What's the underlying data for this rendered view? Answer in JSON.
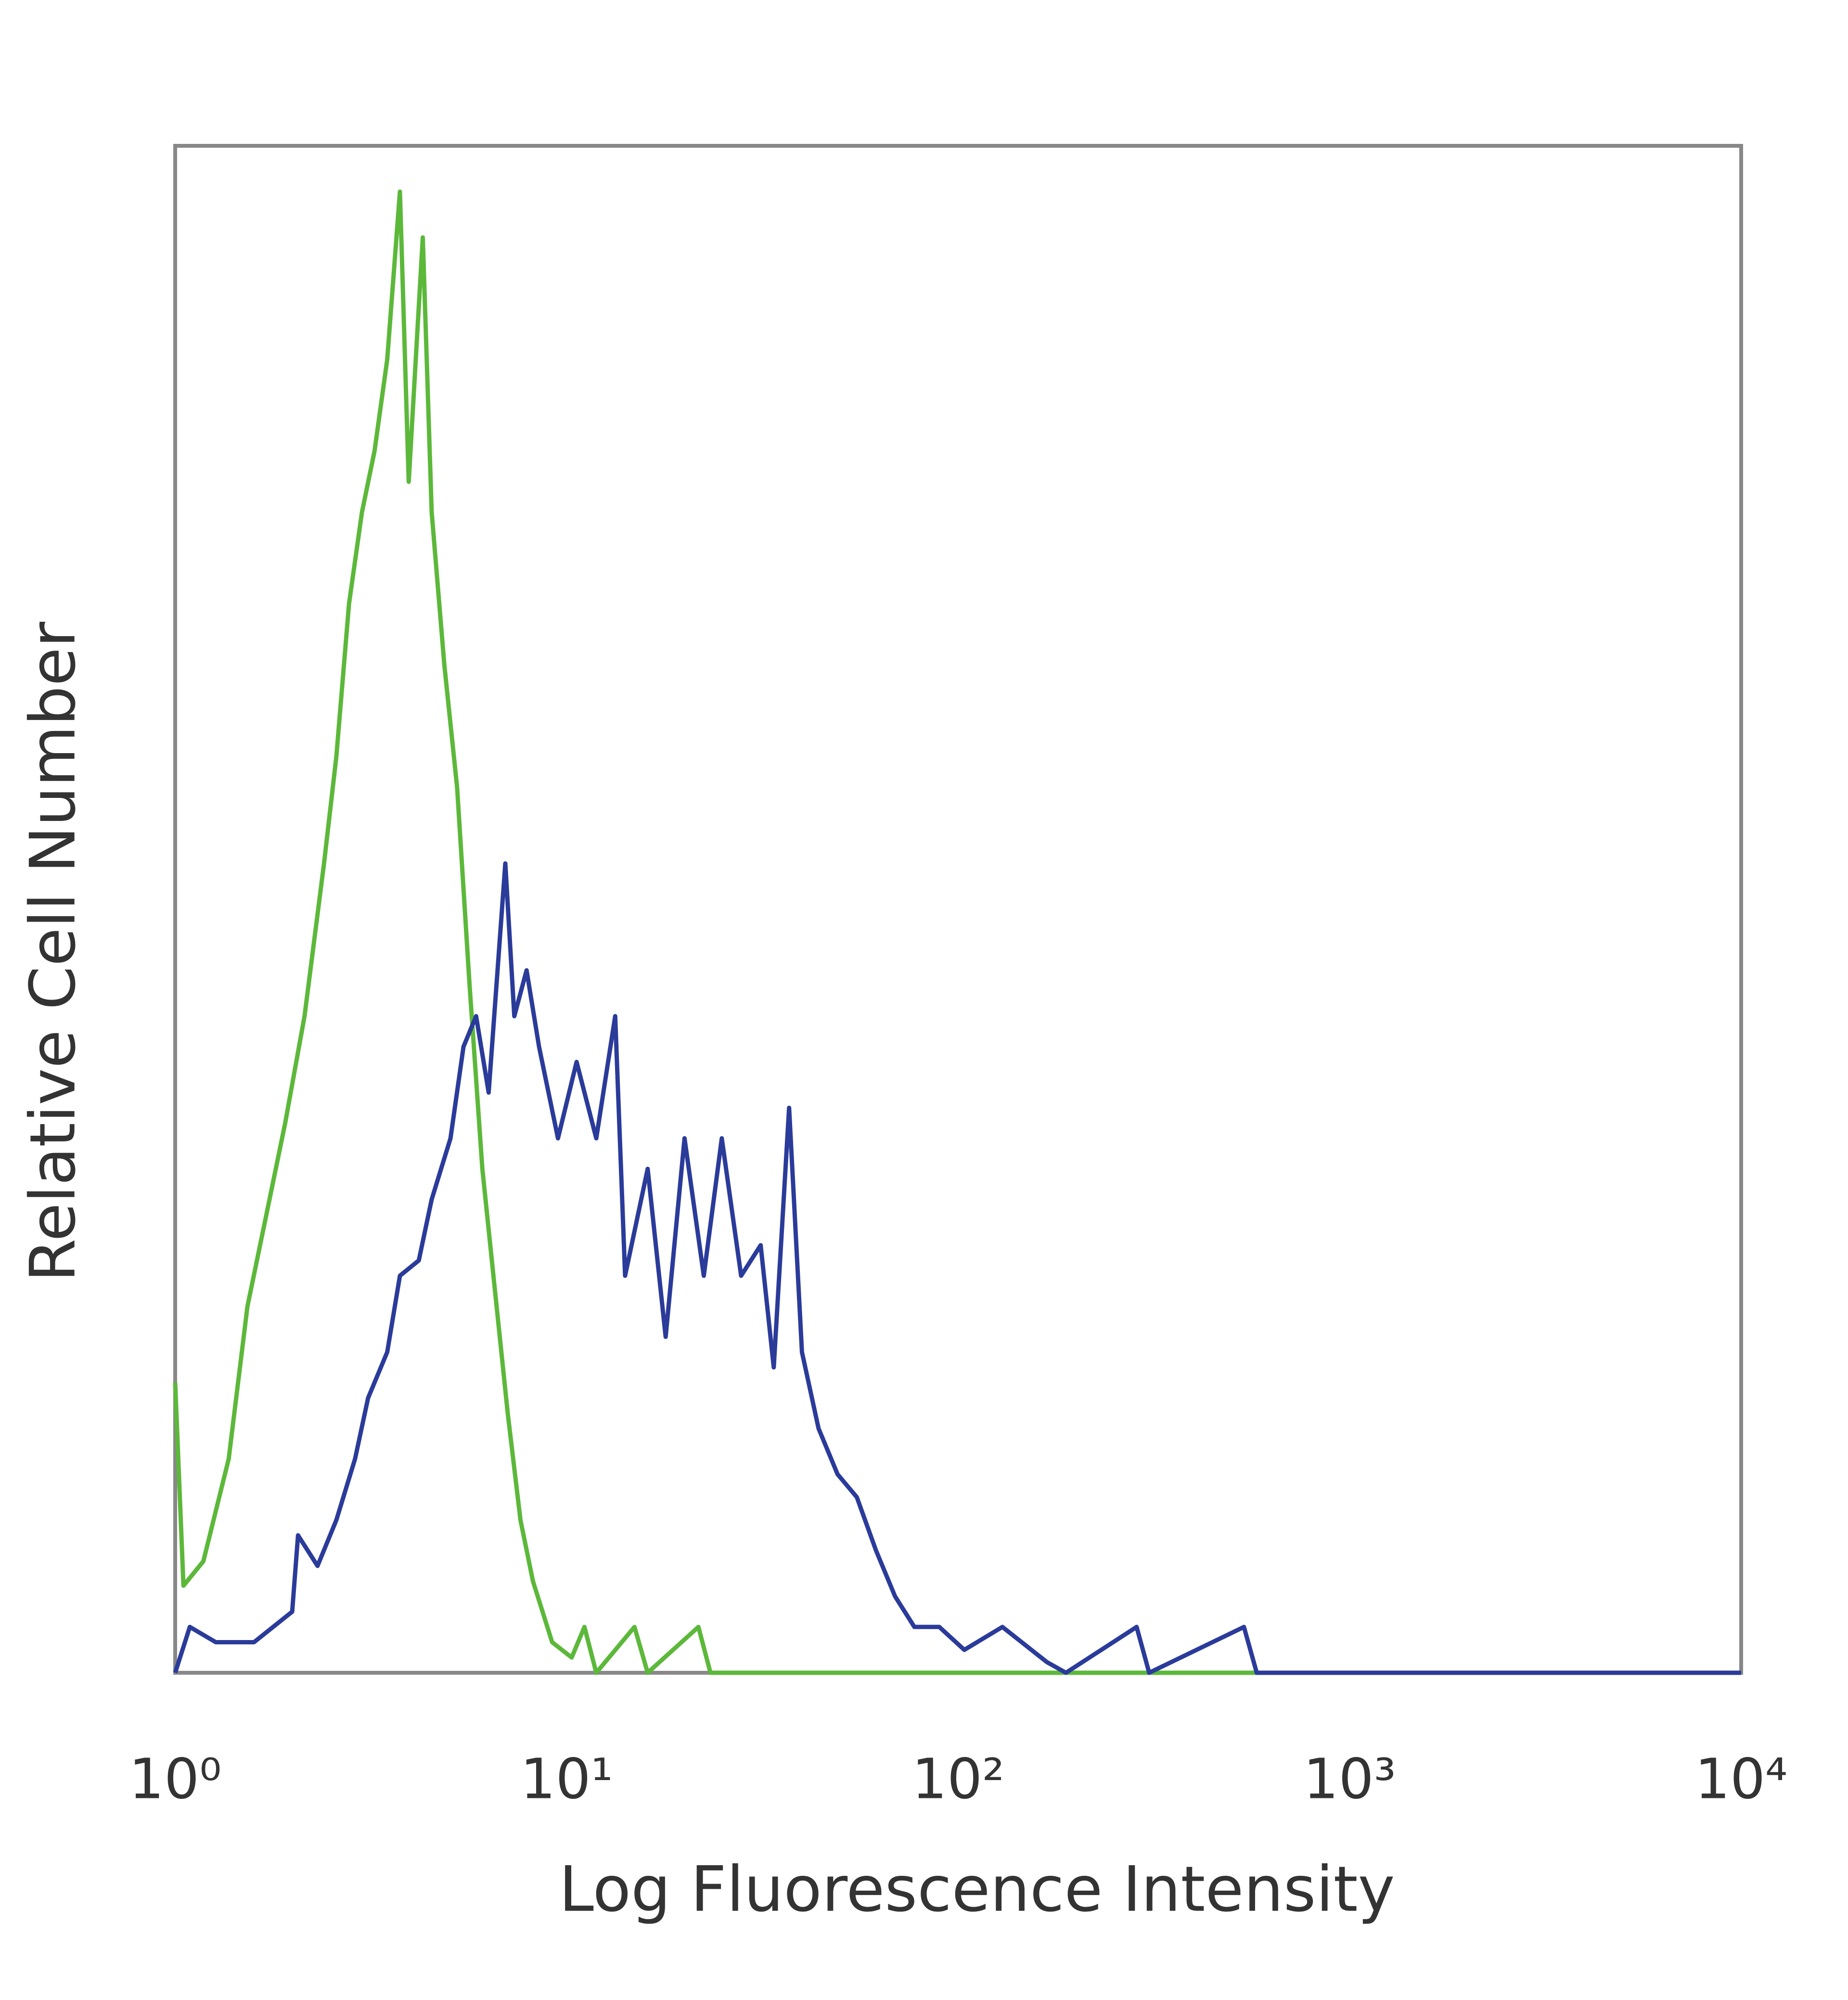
{
  "chart_data": {
    "type": "line",
    "x_label": "Log Fluorescence Intensity",
    "y_label": "Relative Cell Number",
    "xscale": "log",
    "xlim": [
      1,
      10000
    ],
    "ylim": [
      0,
      100
    ],
    "xticks": [
      {
        "value": 1,
        "label": "10⁰"
      },
      {
        "value": 10,
        "label": "10¹"
      },
      {
        "value": 100,
        "label": "10²"
      },
      {
        "value": 1000,
        "label": "10³"
      },
      {
        "value": 10000,
        "label": "10⁴"
      }
    ],
    "series": [
      {
        "color": "#5cb83a",
        "x": [
          1.0,
          1.05,
          1.18,
          1.37,
          1.53,
          1.71,
          1.91,
          2.14,
          2.4,
          2.58,
          2.78,
          3.0,
          3.23,
          3.48,
          3.75,
          3.95,
          4.29,
          4.52,
          4.87,
          5.25,
          5.65,
          6.09,
          6.56,
          7.07,
          7.62,
          8.2,
          9.18,
          10.3,
          11.1,
          11.9,
          14.9,
          16.1,
          21.7,
          23.3,
          10000
        ],
        "values": [
          19,
          5.7,
          7.3,
          14,
          24,
          30,
          36,
          43,
          53,
          60,
          70,
          76,
          80,
          86,
          97,
          78,
          94,
          76,
          66,
          58,
          45,
          33,
          25,
          17,
          10,
          6,
          2,
          1,
          3,
          0,
          3,
          0,
          3,
          0,
          0
        ]
      },
      {
        "color": "#2a3b9a",
        "x": [
          1.0,
          1.09,
          1.27,
          1.59,
          1.99,
          2.06,
          2.31,
          2.58,
          2.88,
          3.11,
          3.48,
          3.75,
          4.19,
          4.52,
          5.05,
          5.45,
          5.87,
          6.32,
          6.97,
          7.35,
          7.9,
          8.5,
          9.5,
          10.6,
          11.9,
          13.3,
          14.1,
          16.1,
          17.9,
          20.0,
          22.4,
          24.9,
          27.9,
          31.3,
          33.8,
          37.0,
          39.9,
          44.0,
          49.2,
          55.1,
          61.7,
          69.0,
          77.3,
          89.5,
          103.7,
          129.7,
          168.5,
          188.5,
          285.6,
          307.5,
          537,
          579,
          10000
        ],
        "values": [
          0,
          3,
          2,
          2,
          4,
          9,
          7,
          10,
          14,
          18,
          21,
          26,
          27,
          31,
          35,
          41,
          43,
          38,
          53,
          43,
          46,
          41,
          35,
          40,
          35,
          43,
          26,
          33,
          22,
          35,
          26,
          35,
          26,
          28,
          20,
          37,
          21,
          16,
          13,
          11.5,
          8,
          5,
          3,
          3,
          1.5,
          3,
          0.7,
          0,
          3,
          0,
          3,
          0,
          0
        ]
      }
    ]
  }
}
